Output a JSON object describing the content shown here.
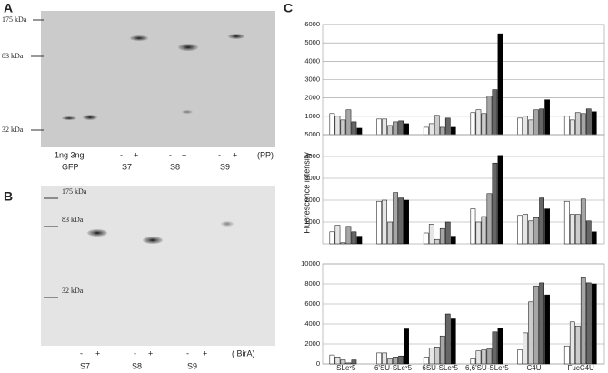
{
  "panels": {
    "a": {
      "label": "A",
      "markers": [
        "175 kDa",
        "83 kDa",
        "32 kDa"
      ],
      "lanes": [
        "1ng 3ng",
        "-",
        "+",
        "-",
        "+",
        "-",
        "+"
      ],
      "treatment": "(PP)",
      "groups": [
        "GFP",
        "S7",
        "S8",
        "S9"
      ]
    },
    "b": {
      "label": "B",
      "markers": [
        "175 kDa",
        "83 kDa",
        "32 kDa"
      ],
      "lanes": [
        "-",
        "+",
        "-",
        "+",
        "-",
        "+"
      ],
      "treatment": "( BirA)",
      "groups": [
        "S7",
        "S8",
        "S9"
      ]
    },
    "c": {
      "label": "C",
      "y_label": "Fluorescence intensity"
    }
  },
  "chart_data": [
    {
      "type": "bar",
      "categories": [
        null,
        null,
        null,
        null,
        null,
        null
      ],
      "ylim": [
        0,
        6000
      ],
      "yticks": [
        1000,
        2000,
        3000,
        4000,
        5000,
        6000
      ],
      "grid": true,
      "series": [
        {
          "color": "#ffffff",
          "values": [
            1150,
            850,
            400,
            1200,
            900,
            1000
          ]
        },
        {
          "color": "#e6e6e6",
          "values": [
            1000,
            850,
            600,
            1350,
            1000,
            800
          ]
        },
        {
          "color": "#cccccc",
          "values": [
            800,
            500,
            1050,
            1150,
            800,
            1200
          ]
        },
        {
          "color": "#a6a6a6",
          "values": [
            1350,
            700,
            400,
            2100,
            1350,
            1150
          ]
        },
        {
          "color": "#666666",
          "values": [
            700,
            750,
            900,
            2450,
            1400,
            1400
          ]
        },
        {
          "color": "#000000",
          "values": [
            350,
            600,
            400,
            5500,
            1900,
            1250
          ]
        }
      ]
    },
    {
      "type": "bar",
      "categories": [
        null,
        null,
        null,
        null,
        null,
        null
      ],
      "ylim": [
        0,
        5000
      ],
      "yticks": [
        1000,
        2000,
        3000,
        4000,
        5000
      ],
      "grid": true,
      "series": [
        {
          "color": "#ffffff",
          "values": [
            550,
            1950,
            500,
            1600,
            1300,
            1950
          ]
        },
        {
          "color": "#e6e6e6",
          "values": [
            850,
            2000,
            900,
            1000,
            1350,
            1350
          ]
        },
        {
          "color": "#cccccc",
          "values": [
            50,
            1000,
            200,
            1250,
            1050,
            1350
          ]
        },
        {
          "color": "#a6a6a6",
          "values": [
            800,
            2350,
            700,
            2300,
            1200,
            2050
          ]
        },
        {
          "color": "#666666",
          "values": [
            550,
            2100,
            1000,
            3700,
            2100,
            1050
          ]
        },
        {
          "color": "#000000",
          "values": [
            350,
            2000,
            350,
            4050,
            1600,
            550
          ]
        }
      ]
    },
    {
      "type": "bar",
      "categories": [
        "SLeˣ5",
        "6'SU-SLeˣ5",
        "6SU-SLeˣ5",
        "6,6'SU-SLeˣ5",
        "C4U",
        "FucC4U"
      ],
      "ylim": [
        0,
        10000
      ],
      "yticks": [
        0,
        2000,
        4000,
        6000,
        8000,
        10000
      ],
      "grid": true,
      "series": [
        {
          "color": "#ffffff",
          "values": [
            900,
            1100,
            700,
            500,
            1400,
            1800
          ]
        },
        {
          "color": "#e6e6e6",
          "values": [
            700,
            1100,
            1600,
            1300,
            3100,
            4200
          ]
        },
        {
          "color": "#cccccc",
          "values": [
            400,
            500,
            1700,
            1400,
            6200,
            3800
          ]
        },
        {
          "color": "#a6a6a6",
          "values": [
            100,
            700,
            2800,
            1500,
            7800,
            8600
          ]
        },
        {
          "color": "#666666",
          "values": [
            400,
            800,
            5000,
            3200,
            8100,
            8100
          ]
        },
        {
          "color": "#000000",
          "values": [
            0,
            3500,
            4500,
            3600,
            6900,
            8000
          ]
        }
      ]
    }
  ]
}
